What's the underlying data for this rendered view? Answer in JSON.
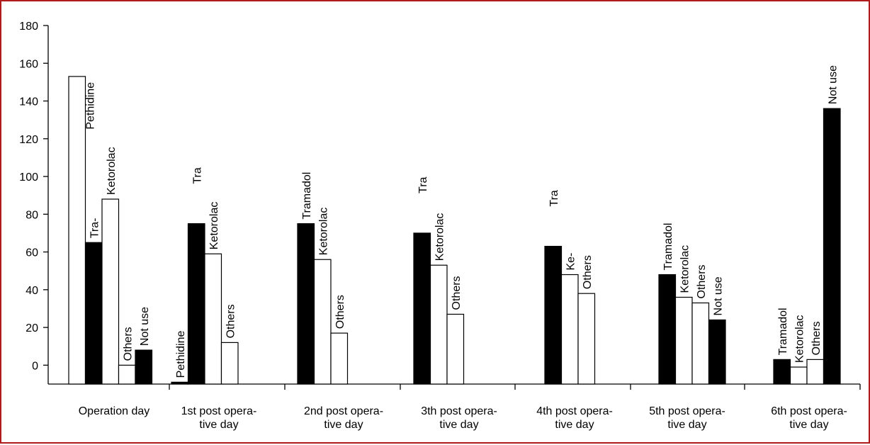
{
  "colors": {
    "frame": "#b01c1c",
    "filled": "#000000",
    "open": "#ffffff",
    "stroke": "#000000"
  },
  "chart_data": {
    "type": "bar",
    "title": "",
    "xlabel": "",
    "ylabel": "",
    "ylim": [
      -10,
      180
    ],
    "yticks": [
      180,
      160,
      140,
      120,
      100,
      80,
      60,
      40,
      20,
      0
    ],
    "grid": false,
    "legend": "none",
    "groups": [
      {
        "label": [
          "Operation day"
        ],
        "bars": [
          {
            "name": "Pethidine",
            "value": 153,
            "fill": "open",
            "label_pos": "right"
          },
          {
            "name": "Tra-",
            "value": 65,
            "fill": "filled",
            "label_pos": "top"
          },
          {
            "name": "Ketorolac",
            "value": 88,
            "fill": "open",
            "label_pos": "top"
          },
          {
            "name": "Others",
            "value": 0,
            "fill": "open",
            "label_pos": "top"
          },
          {
            "name": "Not use",
            "value": 8,
            "fill": "filled",
            "label_pos": "top"
          }
        ]
      },
      {
        "label": [
          "1st post opera-",
          "tive day"
        ],
        "bars": [
          {
            "name": "Pethidine",
            "value": -9,
            "fill": "filled",
            "label_pos": "top"
          },
          {
            "name": "Tra",
            "value": 75,
            "fill": "filled",
            "label_pos": "high"
          },
          {
            "name": "Ketorolac",
            "value": 59,
            "fill": "open",
            "label_pos": "top"
          },
          {
            "name": "Others",
            "value": 12,
            "fill": "open",
            "label_pos": "top"
          }
        ]
      },
      {
        "label": [
          "2nd post opera-",
          "tive day"
        ],
        "bars": [
          {
            "name": "Tramadol",
            "value": 75,
            "fill": "filled",
            "label_pos": "top"
          },
          {
            "name": "Ketorolac",
            "value": 56,
            "fill": "open",
            "label_pos": "top"
          },
          {
            "name": "Others",
            "value": 17,
            "fill": "open",
            "label_pos": "top"
          }
        ]
      },
      {
        "label": [
          "3th post opera-",
          "tive day"
        ],
        "bars": [
          {
            "name": "Tra",
            "value": 70,
            "fill": "filled",
            "label_pos": "high"
          },
          {
            "name": "Ketorolac",
            "value": 53,
            "fill": "open",
            "label_pos": "top"
          },
          {
            "name": "Others",
            "value": 27,
            "fill": "open",
            "label_pos": "top"
          }
        ]
      },
      {
        "label": [
          "4th post opera-",
          "tive day"
        ],
        "bars": [
          {
            "name": "Tra",
            "value": 63,
            "fill": "filled",
            "label_pos": "high"
          },
          {
            "name": "Ke-",
            "value": 48,
            "fill": "open",
            "label_pos": "top"
          },
          {
            "name": "",
            "value": 38,
            "fill": "open",
            "label_pos": "top"
          }
        ]
      },
      {
        "label": [
          "5th post opera-",
          "tive day"
        ],
        "bars": [
          {
            "name": "Tramadol",
            "value": 48,
            "fill": "filled",
            "label_pos": "top"
          },
          {
            "name": "Ketorolac",
            "value": 36,
            "fill": "open",
            "label_pos": "top"
          },
          {
            "name": "Others",
            "value": 33,
            "fill": "open",
            "label_pos": "top"
          },
          {
            "name": "Not use",
            "value": 24,
            "fill": "filled",
            "label_pos": "top"
          }
        ]
      },
      {
        "label": [
          "6th post opera-",
          "tive day"
        ],
        "bars": [
          {
            "name": "Tramadol",
            "value": 3,
            "fill": "filled",
            "label_pos": "top"
          },
          {
            "name": "Ketorolac",
            "value": -1,
            "fill": "open",
            "label_pos": "top"
          },
          {
            "name": "Others",
            "value": 3,
            "fill": "open",
            "label_pos": "top"
          },
          {
            "name": "Not use",
            "value": 136,
            "fill": "filled",
            "label_pos": "top"
          }
        ]
      }
    ],
    "extra_labels": [
      {
        "group": 4,
        "text": "Others",
        "near_bar": 1
      }
    ]
  }
}
